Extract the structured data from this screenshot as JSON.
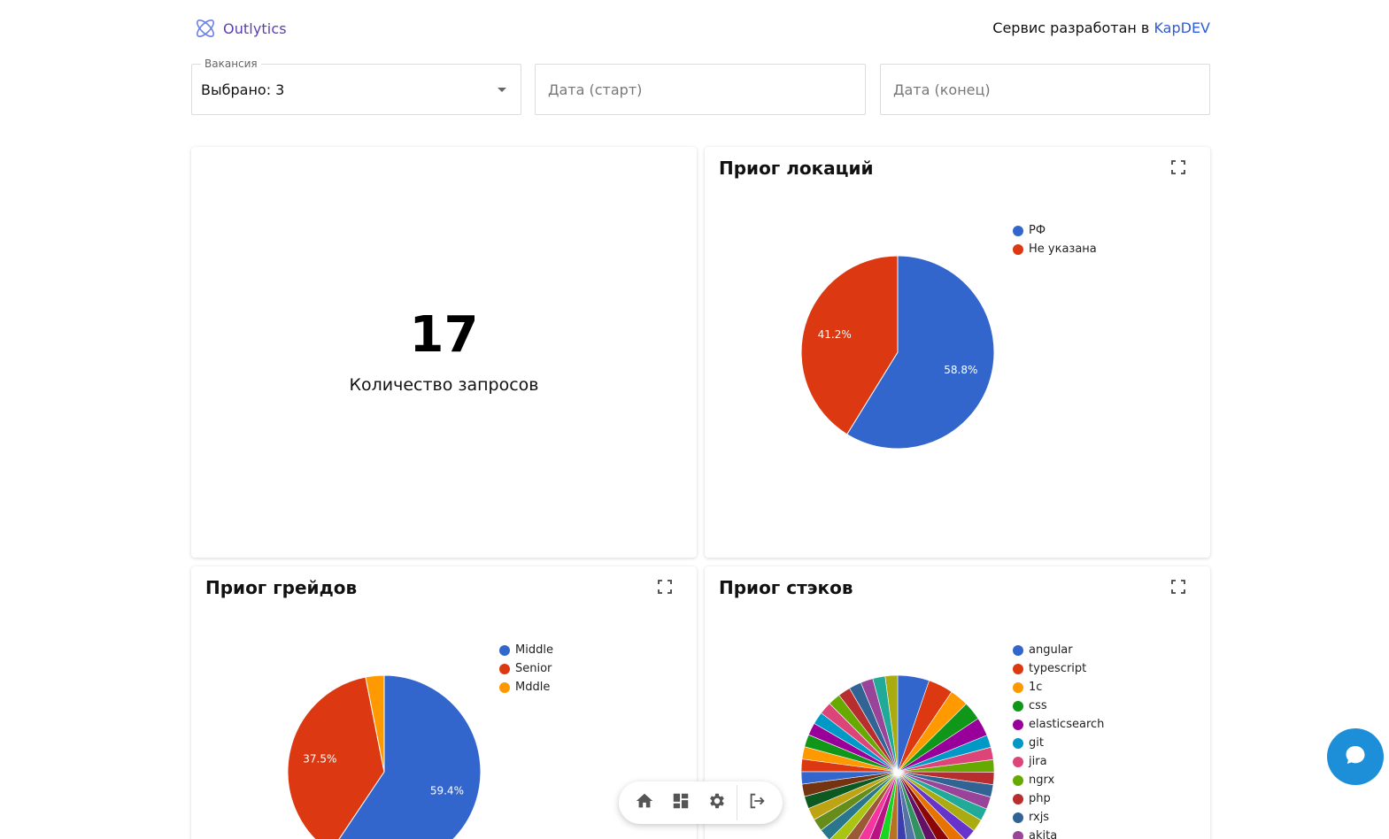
{
  "header": {
    "brand": "Outlytics",
    "credit_text": "Сервис разработан в",
    "credit_link": "KapDEV"
  },
  "filters": {
    "vacancy": {
      "label": "Вакансия",
      "value": "Выбрано: 3"
    },
    "date_start": {
      "placeholder": "Дата (старт)"
    },
    "date_end": {
      "placeholder": "Дата (конец)"
    }
  },
  "stat_card": {
    "value": "17",
    "label": "Количество запросов"
  },
  "locations_card": {
    "title": "Приог локаций"
  },
  "grades_card": {
    "title": "Приог грейдов"
  },
  "stacks_card": {
    "title": "Приог стэков"
  },
  "icons": {
    "logo": "atom-logo-icon",
    "expand": "fullscreen-icon",
    "home": "home-icon",
    "dashboard": "dashboard-icon",
    "settings": "gear-icon",
    "logout": "logout-icon",
    "chat": "chat-bubble-icon"
  },
  "colors": {
    "brand": "#5a3fb0",
    "link": "#2f5bd6",
    "chat": "#1d8fd8"
  },
  "chart_data": [
    {
      "type": "pie",
      "title": "Приог локаций",
      "legend": "top-right",
      "slices": [
        {
          "label": "РФ",
          "value": 58.8,
          "display": "58.8%",
          "color": "#3366cc"
        },
        {
          "label": "Не указана",
          "value": 41.2,
          "display": "41.2%",
          "color": "#dc3912"
        }
      ]
    },
    {
      "type": "pie",
      "title": "Приог грейдов",
      "legend": "top-right",
      "slices": [
        {
          "label": "Middle",
          "value": 59.4,
          "display": "59.4%",
          "color": "#3366cc"
        },
        {
          "label": "Senior",
          "value": 37.5,
          "display": "37.5%",
          "color": "#dc3912"
        },
        {
          "label": "Mddle",
          "value": 3.1,
          "display": "",
          "color": "#ff9900"
        }
      ]
    },
    {
      "type": "pie",
      "title": "Приог стэков",
      "legend": "top-right",
      "legend_items": [
        {
          "label": "angular",
          "color": "#3366cc"
        },
        {
          "label": "typescript",
          "color": "#dc3912"
        },
        {
          "label": "1c",
          "color": "#ff9900"
        },
        {
          "label": "css",
          "color": "#109618"
        },
        {
          "label": "elasticsearch",
          "color": "#990099"
        },
        {
          "label": "git",
          "color": "#0099c6"
        },
        {
          "label": "jira",
          "color": "#dd4477"
        },
        {
          "label": "ngrx",
          "color": "#66aa00"
        },
        {
          "label": "php",
          "color": "#b82e2e"
        },
        {
          "label": "rxjs",
          "color": "#316395"
        },
        {
          "label": "akita",
          "color": "#994499"
        }
      ],
      "slices": [
        {
          "value": 5.6,
          "color": "#3366cc"
        },
        {
          "value": 4.4,
          "color": "#dc3912"
        },
        {
          "value": 3.3,
          "color": "#ff9900"
        },
        {
          "value": 3.3,
          "color": "#109618"
        },
        {
          "value": 3.3,
          "color": "#990099"
        },
        {
          "value": 2.2,
          "color": "#0099c6"
        },
        {
          "value": 2.2,
          "color": "#dd4477"
        },
        {
          "value": 2.2,
          "color": "#66aa00"
        },
        {
          "value": 2.2,
          "color": "#b82e2e"
        },
        {
          "value": 2.2,
          "color": "#316395"
        },
        {
          "value": 2.2,
          "color": "#994499"
        },
        {
          "value": 2.2,
          "color": "#22aa99"
        },
        {
          "value": 2.2,
          "color": "#aaaa11"
        },
        {
          "value": 2.2,
          "color": "#6633cc"
        },
        {
          "value": 2.2,
          "color": "#e67300"
        },
        {
          "value": 2.2,
          "color": "#8b0707"
        },
        {
          "value": 2.2,
          "color": "#651067"
        },
        {
          "value": 2.2,
          "color": "#329262"
        },
        {
          "value": 2.2,
          "color": "#5574a6"
        },
        {
          "value": 2.2,
          "color": "#3b3eac"
        },
        {
          "value": 2.2,
          "color": "#b77322"
        },
        {
          "value": 2.2,
          "color": "#16d620"
        },
        {
          "value": 2.2,
          "color": "#b91383"
        },
        {
          "value": 2.2,
          "color": "#f4359e"
        },
        {
          "value": 2.2,
          "color": "#9c5935"
        },
        {
          "value": 2.2,
          "color": "#a9c413"
        },
        {
          "value": 2.2,
          "color": "#2a778d"
        },
        {
          "value": 2.2,
          "color": "#668d1c"
        },
        {
          "value": 2.2,
          "color": "#bea413"
        },
        {
          "value": 2.2,
          "color": "#0c5922"
        },
        {
          "value": 2.2,
          "color": "#743411"
        },
        {
          "value": 2.2,
          "color": "#3366cc"
        },
        {
          "value": 2.2,
          "color": "#dc3912"
        },
        {
          "value": 2.2,
          "color": "#ff9900"
        },
        {
          "value": 2.2,
          "color": "#109618"
        },
        {
          "value": 2.2,
          "color": "#990099"
        },
        {
          "value": 2.2,
          "color": "#0099c6"
        },
        {
          "value": 2.2,
          "color": "#dd4477"
        },
        {
          "value": 2.2,
          "color": "#66aa00"
        },
        {
          "value": 2.2,
          "color": "#b82e2e"
        },
        {
          "value": 2.2,
          "color": "#316395"
        },
        {
          "value": 2.2,
          "color": "#994499"
        },
        {
          "value": 2.2,
          "color": "#22aa99"
        },
        {
          "value": 2.2,
          "color": "#aaaa11"
        }
      ]
    }
  ]
}
